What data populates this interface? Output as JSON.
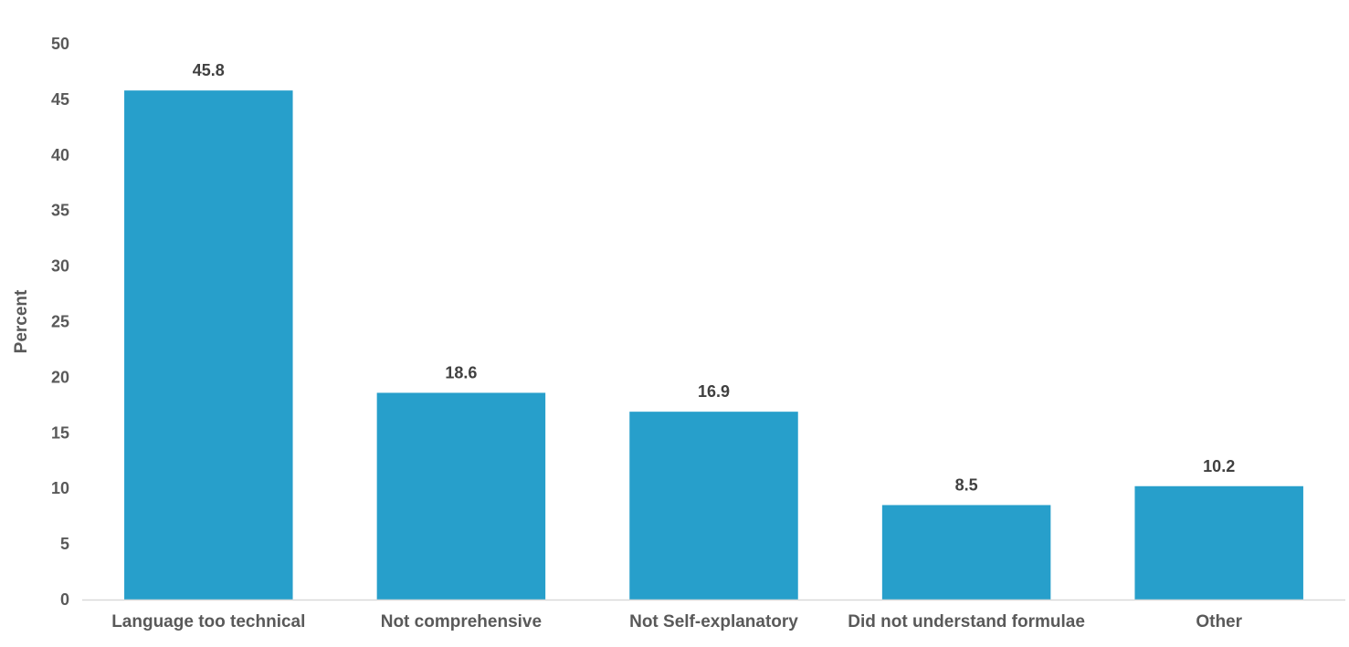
{
  "chart_data": {
    "type": "bar",
    "title": "",
    "xlabel": "",
    "ylabel": "Percent",
    "ylim": [
      0,
      50
    ],
    "y_ticks": [
      "0",
      "5",
      "10",
      "15",
      "20",
      "25",
      "30",
      "35",
      "40",
      "45",
      "50"
    ],
    "categories": [
      "Language too technical",
      "Not comprehensive",
      "Not Self-explanatory",
      "Did not understand formulae",
      "Other"
    ],
    "values": [
      45.8,
      18.6,
      16.9,
      8.5,
      10.2
    ],
    "data_labels": [
      "45.8",
      "18.6",
      "16.9",
      "8.5",
      "10.2"
    ],
    "grid": false,
    "legend": "none",
    "colors": {
      "bar": "#279fcb",
      "axis": "#d9d9d9"
    }
  }
}
